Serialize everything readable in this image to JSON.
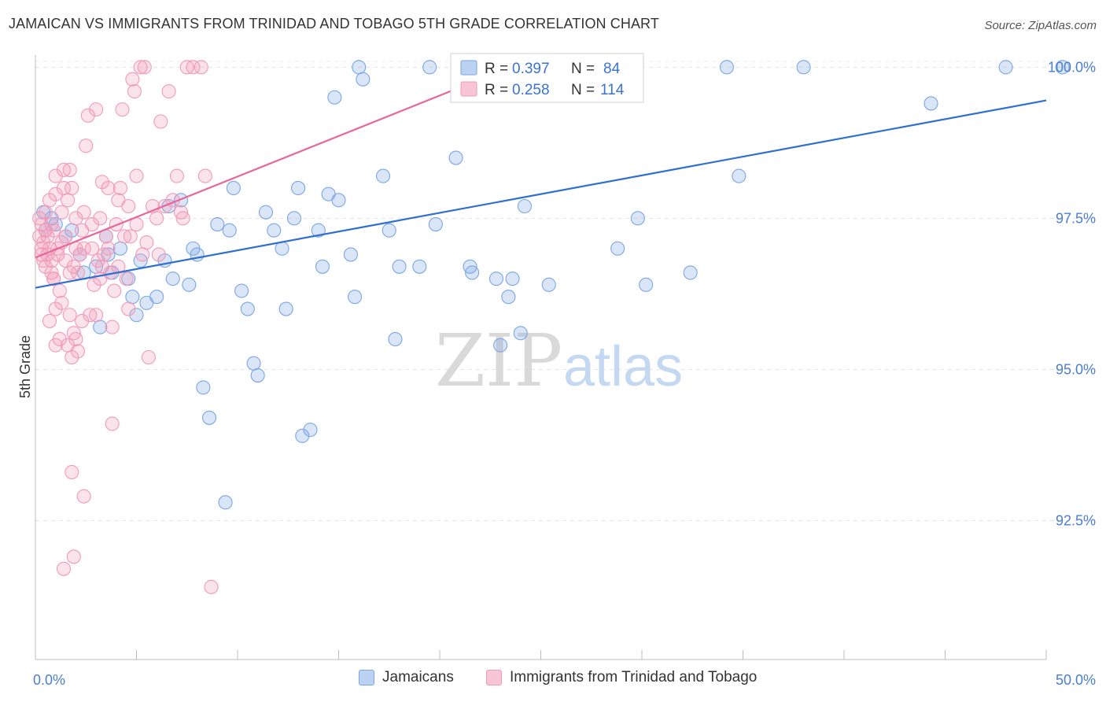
{
  "header": {
    "title": "JAMAICAN VS IMMIGRANTS FROM TRINIDAD AND TOBAGO 5TH GRADE CORRELATION CHART",
    "source": "Source: ZipAtlas.com"
  },
  "watermark": {
    "zip": "ZIP",
    "atlas": "atlas"
  },
  "legend_top": [
    {
      "r_label": "R = ",
      "r_value": "0.397",
      "n_label": "N = ",
      "n_value": "84",
      "color": "#7aa6e6"
    },
    {
      "r_label": "R = ",
      "r_value": "0.258",
      "n_label": "N = ",
      "n_value": "114",
      "color": "#f29ab8"
    }
  ],
  "chart_data": {
    "type": "scatter",
    "title": "JAMAICAN VS IMMIGRANTS FROM TRINIDAD AND TOBAGO 5TH GRADE CORRELATION CHART",
    "xlabel": "",
    "ylabel": "5th Grade",
    "xlim": [
      0,
      50
    ],
    "ylim": [
      90.2,
      100.2
    ],
    "x_tick_labels": [
      "0.0%",
      "50.0%"
    ],
    "y_ticks": [
      92.5,
      95.0,
      97.5,
      100.0
    ],
    "y_tick_labels": [
      "92.5%",
      "95.0%",
      "97.5%",
      "100.0%"
    ],
    "grid": true,
    "legend_position": "top-center",
    "series": [
      {
        "name": "Jamaicans",
        "color": "#7aa6e6",
        "line_color": "#2f6fd0",
        "trend": {
          "x": [
            0,
            50
          ],
          "y": [
            96.35,
            99.45
          ]
        },
        "points": [
          [
            0.4,
            97.6
          ],
          [
            0.5,
            97.3
          ],
          [
            0.8,
            97.5
          ],
          [
            1.0,
            97.4
          ],
          [
            1.5,
            97.2
          ],
          [
            1.8,
            97.3
          ],
          [
            2.2,
            96.9
          ],
          [
            2.4,
            96.6
          ],
          [
            3.0,
            96.7
          ],
          [
            3.2,
            95.7
          ],
          [
            3.5,
            97.2
          ],
          [
            3.6,
            96.9
          ],
          [
            3.8,
            96.6
          ],
          [
            4.2,
            97.0
          ],
          [
            4.6,
            96.5
          ],
          [
            4.8,
            96.2
          ],
          [
            5.0,
            95.9
          ],
          [
            5.2,
            96.8
          ],
          [
            5.5,
            96.1
          ],
          [
            6.0,
            96.2
          ],
          [
            6.4,
            96.8
          ],
          [
            6.6,
            97.7
          ],
          [
            6.8,
            96.5
          ],
          [
            7.2,
            97.8
          ],
          [
            7.6,
            96.4
          ],
          [
            7.8,
            97.0
          ],
          [
            8.0,
            96.9
          ],
          [
            8.3,
            94.7
          ],
          [
            8.6,
            94.2
          ],
          [
            9.0,
            97.4
          ],
          [
            9.4,
            92.8
          ],
          [
            9.6,
            97.3
          ],
          [
            9.8,
            98.0
          ],
          [
            10.2,
            96.3
          ],
          [
            10.5,
            96.0
          ],
          [
            10.8,
            95.1
          ],
          [
            11.0,
            94.9
          ],
          [
            11.4,
            97.6
          ],
          [
            11.8,
            97.3
          ],
          [
            12.2,
            97.0
          ],
          [
            12.4,
            96.0
          ],
          [
            12.8,
            97.5
          ],
          [
            13.0,
            98.0
          ],
          [
            13.2,
            93.9
          ],
          [
            13.6,
            94.0
          ],
          [
            14.0,
            97.3
          ],
          [
            14.2,
            96.7
          ],
          [
            14.5,
            97.9
          ],
          [
            14.8,
            99.5
          ],
          [
            15.0,
            97.8
          ],
          [
            15.6,
            96.9
          ],
          [
            15.8,
            96.2
          ],
          [
            16.0,
            100.0
          ],
          [
            16.2,
            99.8
          ],
          [
            17.2,
            98.2
          ],
          [
            17.5,
            97.3
          ],
          [
            17.8,
            95.5
          ],
          [
            18.0,
            96.7
          ],
          [
            19.0,
            96.7
          ],
          [
            19.5,
            100.0
          ],
          [
            19.8,
            97.4
          ],
          [
            20.8,
            98.5
          ],
          [
            21.5,
            96.7
          ],
          [
            21.6,
            96.6
          ],
          [
            22.6,
            100.0
          ],
          [
            22.8,
            96.5
          ],
          [
            23.0,
            95.4
          ],
          [
            23.4,
            96.2
          ],
          [
            23.6,
            96.5
          ],
          [
            24.0,
            95.6
          ],
          [
            24.2,
            97.7
          ],
          [
            25.4,
            96.4
          ],
          [
            26.1,
            100.0
          ],
          [
            26.5,
            100.0
          ],
          [
            28.8,
            97.0
          ],
          [
            29.8,
            97.5
          ],
          [
            30.2,
            96.4
          ],
          [
            32.4,
            96.6
          ],
          [
            34.2,
            100.0
          ],
          [
            34.8,
            98.2
          ],
          [
            38.0,
            100.0
          ],
          [
            44.3,
            99.4
          ],
          [
            48.0,
            100.0
          ],
          [
            50.8,
            100.0
          ]
        ]
      },
      {
        "name": "Immigrants from Trinidad and Tobago",
        "color": "#f29ab8",
        "line_color": "#e8679a",
        "trend": {
          "x": [
            0,
            23.5
          ],
          "y": [
            96.85,
            100.0
          ]
        },
        "points": [
          [
            0.2,
            97.5
          ],
          [
            0.2,
            97.2
          ],
          [
            0.3,
            96.9
          ],
          [
            0.3,
            97.4
          ],
          [
            0.3,
            97.0
          ],
          [
            0.4,
            96.8
          ],
          [
            0.4,
            97.1
          ],
          [
            0.5,
            97.3
          ],
          [
            0.5,
            96.7
          ],
          [
            0.5,
            97.6
          ],
          [
            0.6,
            97.2
          ],
          [
            0.6,
            96.9
          ],
          [
            0.7,
            97.8
          ],
          [
            0.7,
            97.0
          ],
          [
            0.7,
            95.8
          ],
          [
            0.8,
            96.6
          ],
          [
            0.8,
            96.8
          ],
          [
            0.8,
            97.4
          ],
          [
            0.9,
            97.3
          ],
          [
            0.9,
            96.5
          ],
          [
            1.0,
            96.0
          ],
          [
            1.0,
            95.4
          ],
          [
            1.0,
            97.9
          ],
          [
            1.0,
            98.2
          ],
          [
            1.1,
            97.0
          ],
          [
            1.1,
            96.9
          ],
          [
            1.2,
            95.5
          ],
          [
            1.2,
            96.3
          ],
          [
            1.3,
            97.1
          ],
          [
            1.3,
            97.6
          ],
          [
            1.4,
            98.3
          ],
          [
            1.4,
            98.0
          ],
          [
            1.5,
            97.2
          ],
          [
            1.5,
            96.8
          ],
          [
            1.6,
            95.4
          ],
          [
            1.6,
            97.8
          ],
          [
            1.7,
            95.9
          ],
          [
            1.7,
            96.6
          ],
          [
            1.7,
            98.3
          ],
          [
            1.8,
            98.0
          ],
          [
            1.8,
            95.2
          ],
          [
            1.9,
            96.7
          ],
          [
            1.9,
            95.6
          ],
          [
            2.0,
            95.5
          ],
          [
            2.0,
            97.5
          ],
          [
            2.0,
            97.0
          ],
          [
            2.1,
            95.3
          ],
          [
            2.1,
            96.6
          ],
          [
            2.2,
            96.9
          ],
          [
            2.3,
            95.8
          ],
          [
            2.3,
            97.3
          ],
          [
            2.4,
            97.0
          ],
          [
            2.4,
            97.6
          ],
          [
            2.5,
            98.7
          ],
          [
            2.6,
            99.2
          ],
          [
            2.7,
            95.9
          ],
          [
            2.8,
            97.4
          ],
          [
            2.8,
            97.0
          ],
          [
            2.9,
            96.4
          ],
          [
            3.0,
            99.3
          ],
          [
            3.0,
            95.9
          ],
          [
            3.1,
            96.8
          ],
          [
            3.2,
            96.5
          ],
          [
            3.2,
            97.5
          ],
          [
            3.3,
            96.7
          ],
          [
            3.3,
            98.1
          ],
          [
            3.4,
            96.9
          ],
          [
            3.5,
            97.2
          ],
          [
            3.6,
            97.0
          ],
          [
            3.6,
            98.0
          ],
          [
            3.7,
            96.6
          ],
          [
            3.8,
            95.7
          ],
          [
            3.8,
            94.1
          ],
          [
            3.9,
            96.3
          ],
          [
            4.0,
            97.4
          ],
          [
            4.1,
            97.8
          ],
          [
            4.1,
            96.7
          ],
          [
            4.2,
            98.0
          ],
          [
            4.3,
            99.3
          ],
          [
            4.4,
            97.2
          ],
          [
            4.5,
            96.5
          ],
          [
            4.6,
            96.0
          ],
          [
            4.6,
            97.7
          ],
          [
            4.7,
            97.2
          ],
          [
            4.8,
            99.8
          ],
          [
            4.9,
            99.6
          ],
          [
            5.0,
            97.4
          ],
          [
            5.0,
            98.2
          ],
          [
            5.2,
            100.0
          ],
          [
            5.3,
            96.9
          ],
          [
            5.4,
            100.0
          ],
          [
            5.5,
            97.1
          ],
          [
            5.6,
            95.2
          ],
          [
            5.8,
            97.7
          ],
          [
            6.0,
            97.5
          ],
          [
            6.1,
            96.9
          ],
          [
            6.2,
            99.1
          ],
          [
            6.4,
            97.7
          ],
          [
            6.6,
            99.6
          ],
          [
            6.8,
            97.8
          ],
          [
            7.0,
            98.2
          ],
          [
            7.2,
            97.6
          ],
          [
            7.3,
            97.5
          ],
          [
            7.5,
            100.0
          ],
          [
            7.8,
            100.0
          ],
          [
            8.2,
            100.0
          ],
          [
            8.4,
            98.2
          ],
          [
            8.7,
            91.4
          ],
          [
            1.8,
            93.3
          ],
          [
            1.9,
            91.9
          ],
          [
            1.4,
            91.7
          ],
          [
            2.4,
            92.9
          ],
          [
            1.3,
            96.1
          ],
          [
            0.9,
            96.5
          ]
        ]
      }
    ]
  },
  "legend_bottom": [
    {
      "label": "Jamaicans",
      "color": "#7aa6e6"
    },
    {
      "label": "Immigrants from Trinidad and Tobago",
      "color": "#f29ab8"
    }
  ]
}
